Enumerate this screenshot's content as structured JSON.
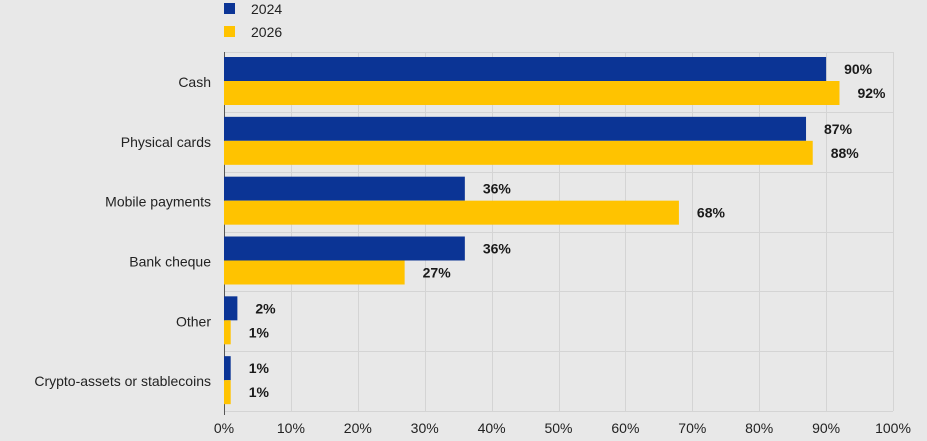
{
  "colors": {
    "series_2024": "#0b3495",
    "series_2026": "#ffc300",
    "background": "#e8e8e8"
  },
  "chart_data": {
    "type": "bar",
    "orientation": "horizontal",
    "categories": [
      "Cash",
      "Physical cards",
      "Mobile payments",
      "Bank cheque",
      "Other",
      "Crypto-assets or stablecoins"
    ],
    "series": [
      {
        "name": "2024",
        "values": [
          90,
          87,
          36,
          36,
          2,
          1
        ]
      },
      {
        "name": "2026",
        "values": [
          92,
          88,
          68,
          27,
          1,
          1
        ]
      }
    ],
    "data_labels": [
      [
        "90%",
        "87%",
        "36%",
        "36%",
        "2%",
        "1%"
      ],
      [
        "92%",
        "88%",
        "68%",
        "27%",
        "1%",
        "1%"
      ]
    ],
    "xlim": [
      0,
      100
    ],
    "x_ticks": [
      "0%",
      "10%",
      "20%",
      "30%",
      "40%",
      "50%",
      "60%",
      "70%",
      "80%",
      "90%",
      "100%"
    ],
    "grid": true,
    "legend_position": "top-left"
  }
}
